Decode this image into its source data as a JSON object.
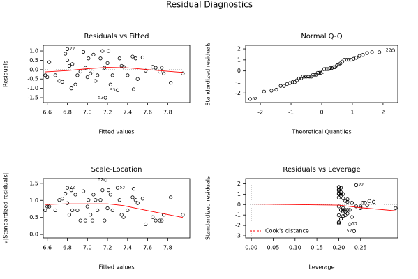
{
  "title": "Residual Diagnostics",
  "chart_data": [
    {
      "type": "scatter",
      "title": "Residuals vs Fitted",
      "x_label": "Fitted values",
      "y_label": "Residuals",
      "x": [
        6.58,
        6.6,
        6.62,
        6.68,
        6.72,
        6.75,
        6.78,
        6.8,
        6.8,
        6.82,
        6.84,
        6.85,
        6.88,
        6.9,
        6.93,
        6.96,
        6.98,
        7.0,
        7.01,
        7.03,
        7.05,
        7.06,
        7.08,
        7.1,
        7.13,
        7.15,
        7.17,
        7.18,
        7.2,
        7.21,
        7.23,
        7.25,
        7.3,
        7.32,
        7.34,
        7.36,
        7.4,
        7.45,
        7.46,
        7.48,
        7.5,
        7.55,
        7.58,
        7.65,
        7.68,
        7.72,
        7.74,
        7.76,
        7.83,
        7.95
      ],
      "values": [
        -0.3,
        -0.4,
        0.4,
        -0.3,
        -0.6,
        -0.65,
        0.85,
        1.1,
        0.5,
        0.2,
        -1.0,
        0.3,
        -0.8,
        -0.3,
        -0.1,
        0.95,
        0.1,
        -0.4,
        0.6,
        -0.2,
        -0.1,
        0.8,
        -0.6,
        -0.3,
        0.6,
        1.0,
        0.1,
        -1.5,
        0.35,
        1.0,
        -0.8,
        -0.3,
        -1.1,
        0.6,
        0.2,
        0.15,
        -0.3,
        0.7,
        -1.05,
        0.6,
        -0.5,
        0.65,
        -0.05,
        0.15,
        0.1,
        -0.1,
        0.1,
        -0.2,
        -0.7,
        -0.2
      ],
      "smooth": {
        "color": "#ff0000",
        "x": [
          6.58,
          6.8,
          7.0,
          7.2,
          7.4,
          7.6,
          7.95
        ],
        "values": [
          -0.12,
          -0.05,
          0.05,
          0.12,
          0.1,
          0.0,
          -0.15
        ]
      },
      "annotations": [
        {
          "text": "22",
          "x": 6.8,
          "y": 1.1,
          "side": "right"
        },
        {
          "text": "52",
          "x": 7.18,
          "y": -1.5,
          "side": "left"
        },
        {
          "text": "53",
          "x": 7.3,
          "y": -1.1,
          "side": "left"
        }
      ],
      "hline": 0,
      "xlim": [
        6.56,
        8.02
      ],
      "ylim": [
        -1.76,
        1.3
      ],
      "xticks": [
        6.6,
        6.8,
        {
          "value": 7,
          "label": "7.0"
        },
        7.2,
        7.4,
        7.6,
        7.8
      ],
      "yticks": [
        {
          "value": 1,
          "label": "1.0"
        },
        0.5,
        {
          "value": 0,
          "label": "0.0"
        },
        -0.5,
        {
          "value": -1,
          "label": "-1.0"
        },
        -1.5
      ]
    },
    {
      "type": "scatter",
      "title": "Normal Q-Q",
      "x_label": "Theoretical Quantiles",
      "y_label": "Standardized residuals",
      "x": [
        -2.33,
        -1.88,
        -1.64,
        -1.48,
        -1.34,
        -1.23,
        -1.13,
        -1.04,
        -0.95,
        -0.88,
        -0.81,
        -0.74,
        -0.67,
        -0.61,
        -0.55,
        -0.5,
        -0.44,
        -0.39,
        -0.33,
        -0.28,
        -0.23,
        -0.18,
        -0.13,
        -0.08,
        -0.03,
        0.03,
        0.08,
        0.13,
        0.18,
        0.23,
        0.28,
        0.33,
        0.39,
        0.44,
        0.5,
        0.55,
        0.61,
        0.67,
        0.74,
        0.81,
        0.88,
        0.95,
        1.04,
        1.13,
        1.23,
        1.34,
        1.48,
        1.64,
        1.88,
        2.33
      ],
      "values": [
        -2.55,
        -1.87,
        -1.79,
        -1.7,
        -1.36,
        -1.36,
        -1.19,
        -1.1,
        -1.02,
        -1.02,
        -0.85,
        -0.68,
        -0.68,
        -0.51,
        -0.51,
        -0.51,
        -0.51,
        -0.51,
        -0.51,
        -0.34,
        -0.34,
        -0.34,
        -0.17,
        -0.17,
        -0.17,
        -0.09,
        0.17,
        0.17,
        0.17,
        0.17,
        0.26,
        0.26,
        0.34,
        0.34,
        0.51,
        0.6,
        0.68,
        0.85,
        1.02,
        1.02,
        1.02,
        1.02,
        1.1,
        1.19,
        1.36,
        1.45,
        1.62,
        1.7,
        1.7,
        1.87
      ],
      "annotations": [
        {
          "text": "22",
          "x": 2.33,
          "y": 1.87,
          "side": "left"
        },
        {
          "text": "52",
          "x": -2.33,
          "y": -2.55,
          "side": "right"
        }
      ],
      "xlim": [
        -2.48,
        2.48
      ],
      "ylim": [
        -2.87,
        2.32
      ],
      "xticks": [
        -2,
        -1,
        0,
        1,
        2
      ],
      "yticks": [
        2,
        1,
        0,
        -1,
        -2
      ]
    },
    {
      "type": "scatter",
      "title": "Scale-Location",
      "x_label": "Fitted values",
      "y_label": "√|Standardized residuals|",
      "x": [
        6.58,
        6.6,
        6.62,
        6.68,
        6.72,
        6.75,
        6.78,
        6.8,
        6.8,
        6.82,
        6.84,
        6.85,
        6.88,
        6.9,
        6.93,
        6.96,
        6.98,
        7.0,
        7.01,
        7.03,
        7.05,
        7.06,
        7.08,
        7.1,
        7.13,
        7.15,
        7.17,
        7.18,
        7.2,
        7.21,
        7.23,
        7.25,
        7.3,
        7.32,
        7.34,
        7.36,
        7.4,
        7.45,
        7.46,
        7.48,
        7.5,
        7.55,
        7.58,
        7.65,
        7.68,
        7.72,
        7.74,
        7.76,
        7.83,
        7.95
      ],
      "values": [
        0.71,
        0.82,
        0.82,
        0.71,
        1.01,
        1.05,
        1.2,
        1.37,
        0.92,
        0.58,
        1.3,
        0.71,
        1.17,
        0.71,
        0.41,
        1.27,
        0.41,
        0.82,
        1.01,
        0.58,
        0.41,
        1.17,
        1.01,
        0.71,
        1.01,
        1.3,
        0.41,
        1.6,
        0.77,
        1.3,
        1.17,
        0.71,
        1.37,
        1.01,
        0.58,
        0.51,
        0.71,
        1.09,
        1.34,
        1.01,
        0.92,
        1.05,
        0.3,
        0.51,
        0.41,
        0.41,
        0.41,
        0.58,
        1.09,
        0.58
      ],
      "smooth": {
        "color": "#ff0000",
        "x": [
          6.58,
          6.8,
          7.0,
          7.2,
          7.35,
          7.6,
          7.95
        ],
        "values": [
          0.88,
          0.9,
          0.9,
          0.9,
          0.85,
          0.7,
          0.5
        ]
      },
      "annotations": [
        {
          "text": "22",
          "x": 6.8,
          "y": 1.37,
          "side": "right"
        },
        {
          "text": "52",
          "x": 7.18,
          "y": 1.6,
          "side": "left"
        },
        {
          "text": "53",
          "x": 7.3,
          "y": 1.37,
          "side": "right"
        }
      ],
      "xlim": [
        6.56,
        8.02
      ],
      "ylim": [
        -0.1,
        1.64
      ],
      "xticks": [
        6.6,
        6.8,
        {
          "value": 7,
          "label": "7.0"
        },
        7.2,
        7.4,
        7.6,
        7.8
      ],
      "yticks": [
        {
          "value": 0,
          "label": "0.0"
        },
        0.5,
        {
          "value": 1,
          "label": "1.0"
        },
        1.5
      ]
    },
    {
      "type": "scatter",
      "title": "Residuals vs Leverage",
      "x_label": "Leverage",
      "y_label": "Standardized residuals",
      "x": [
        0.205,
        0.21,
        0.2,
        0.205,
        0.2,
        0.21,
        0.2,
        0.24,
        0.205,
        0.215,
        0.2,
        0.22,
        0.205,
        0.21,
        0.2,
        0.205,
        0.23,
        0.215,
        0.2,
        0.21,
        0.25,
        0.2,
        0.215,
        0.22,
        0.205,
        0.2,
        0.26,
        0.235,
        0.21,
        0.2,
        0.205,
        0.225,
        0.225,
        0.21,
        0.27,
        0.28,
        0.215,
        0.205,
        0.2,
        0.21,
        0.22,
        0.2,
        0.265,
        0.22,
        0.23,
        0.24,
        0.255,
        0.25,
        0.23,
        0.33
      ],
      "values": [
        -0.51,
        -0.68,
        0.68,
        -0.51,
        -1.02,
        -1.1,
        1.45,
        1.87,
        0.85,
        0.34,
        -1.7,
        0.51,
        -1.36,
        -0.51,
        -0.17,
        1.62,
        0.17,
        -0.68,
        1.02,
        -0.34,
        -0.17,
        1.36,
        -1.02,
        -0.51,
        1.02,
        1.7,
        0.17,
        -2.55,
        0.6,
        1.7,
        -1.36,
        -0.51,
        -1.87,
        1.02,
        0.34,
        0.26,
        -0.51,
        1.19,
        -1.79,
        1.02,
        -0.85,
        1.1,
        -0.09,
        0.26,
        0.17,
        -0.17,
        0.17,
        -0.34,
        -1.19,
        -0.34
      ],
      "smooth": {
        "color": "#ff0000",
        "x": [
          0,
          0.2,
          0.25,
          0.33
        ],
        "values": [
          0.05,
          -0.05,
          -0.3,
          -0.6
        ]
      },
      "annotations": [
        {
          "text": "22",
          "x": 0.24,
          "y": 1.87,
          "side": "right"
        },
        {
          "text": "53",
          "x": 0.225,
          "y": -1.87,
          "side": "right"
        },
        {
          "text": "52",
          "x": 0.235,
          "y": -2.55,
          "side": "left"
        }
      ],
      "hline": 0,
      "vline": 0,
      "legend": {
        "name": "Cook's distance",
        "color": "#ff0000",
        "position": "bottomleft"
      },
      "xlim": [
        -0.013,
        0.335
      ],
      "ylim": [
        -3.2,
        2.5
      ],
      "xticks": [
        {
          "value": 0,
          "label": "0.00"
        },
        0.05,
        {
          "value": 0.1,
          "label": "0.10"
        },
        0.15,
        {
          "value": 0.2,
          "label": "0.20"
        },
        0.25
      ],
      "yticks": [
        2,
        1,
        0,
        -1,
        -2,
        -3
      ]
    }
  ]
}
